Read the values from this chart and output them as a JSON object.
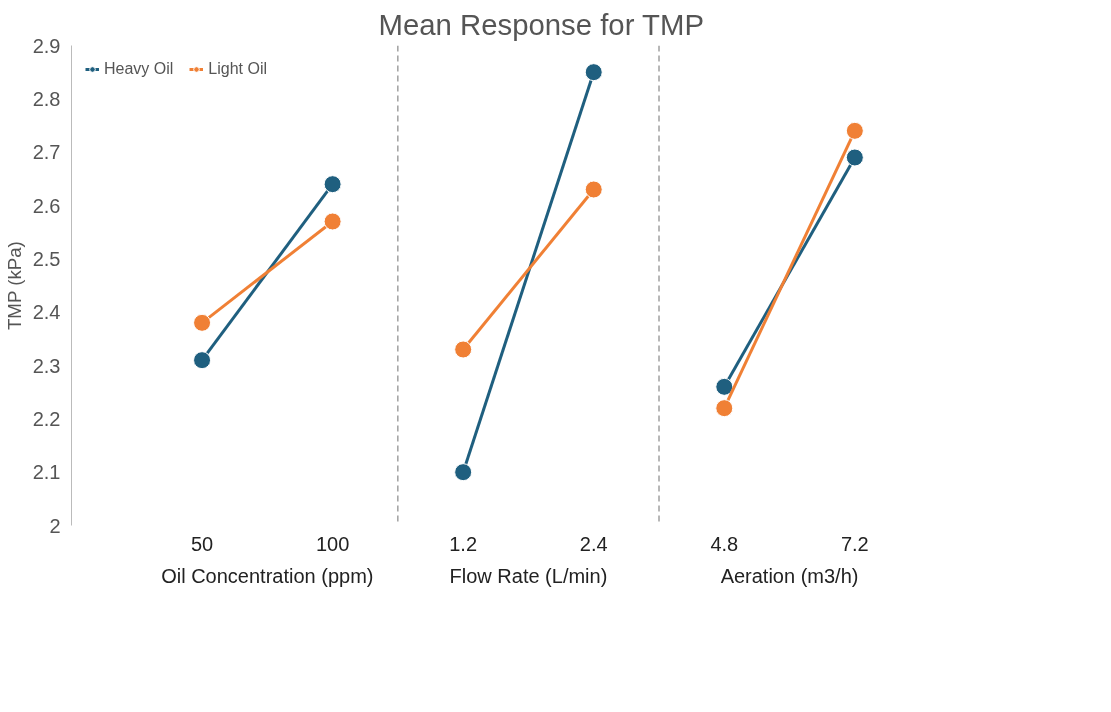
{
  "chart_data": {
    "type": "line",
    "title": "Mean Response for TMP",
    "ylabel": "TMP (kPa)",
    "categories": [
      "50",
      "100",
      "1.2",
      "2.4",
      "4.8",
      "7.2"
    ],
    "series": [
      {
        "name": "Heavy Oil",
        "color": "#1f5f7f",
        "values": [
          2.31,
          2.64,
          null,
          null,
          null,
          null
        ]
      },
      {
        "color": "#1f5f7f",
        "values": [
          null,
          null,
          2.1,
          2.85,
          null,
          null
        ]
      },
      {
        "color": "#1f5f7f",
        "values": [
          null,
          null,
          null,
          null,
          2.26,
          2.69
        ]
      },
      {
        "name": "Light Oil",
        "color": "#f08035",
        "values": [
          2.38,
          2.57,
          null,
          null,
          null,
          null
        ]
      },
      {
        "color": "#f08035",
        "values": [
          null,
          null,
          2.33,
          2.63,
          null,
          null
        ]
      },
      {
        "color": "#f08035",
        "values": [
          null,
          null,
          null,
          null,
          2.22,
          2.74
        ]
      }
    ],
    "annotations": [
      "Oil Concentration (ppm)",
      "Flow Rate (L/min)",
      "Aeration (m3/h)"
    ],
    "ylim": [
      2,
      2.9
    ],
    "yticks": [
      2,
      2.1,
      2.2,
      2.3,
      2.4,
      2.5,
      2.6,
      2.7,
      2.8,
      2.9
    ],
    "marker": "circle",
    "line_style": "solid",
    "legend": "top left",
    "grid": false
  }
}
